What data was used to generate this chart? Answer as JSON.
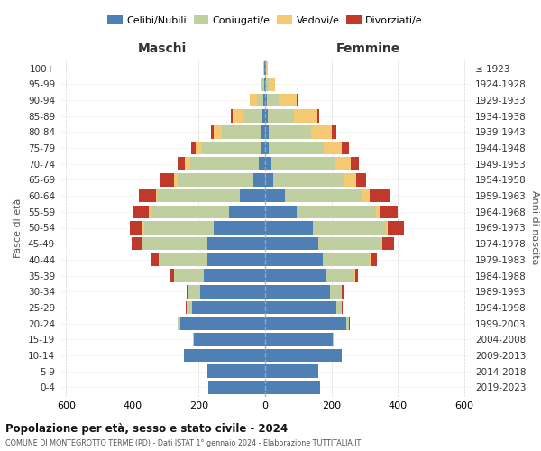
{
  "age_groups": [
    "100+",
    "95-99",
    "90-94",
    "85-89",
    "80-84",
    "75-79",
    "70-74",
    "65-69",
    "60-64",
    "55-59",
    "50-54",
    "45-49",
    "40-44",
    "35-39",
    "30-34",
    "25-29",
    "20-24",
    "15-19",
    "10-14",
    "5-9",
    "0-4"
  ],
  "birth_years": [
    "≤ 1923",
    "1924-1928",
    "1929-1933",
    "1934-1938",
    "1939-1943",
    "1944-1948",
    "1949-1953",
    "1954-1958",
    "1959-1963",
    "1964-1968",
    "1969-1973",
    "1974-1978",
    "1979-1983",
    "1984-1988",
    "1989-1993",
    "1994-1998",
    "1999-2003",
    "2004-2008",
    "2009-2013",
    "2014-2018",
    "2019-2023"
  ],
  "male_celibe": [
    2,
    3,
    5,
    8,
    10,
    14,
    20,
    35,
    75,
    110,
    155,
    175,
    175,
    185,
    195,
    220,
    255,
    215,
    245,
    175,
    170
  ],
  "male_coniugato": [
    2,
    5,
    20,
    60,
    120,
    175,
    205,
    230,
    250,
    235,
    210,
    195,
    145,
    90,
    35,
    15,
    8,
    2,
    0,
    0,
    0
  ],
  "male_vedovo": [
    2,
    5,
    20,
    30,
    25,
    20,
    18,
    10,
    5,
    5,
    4,
    2,
    2,
    1,
    1,
    1,
    1,
    0,
    0,
    0,
    0
  ],
  "male_divorziato": [
    0,
    0,
    2,
    4,
    8,
    15,
    20,
    40,
    50,
    50,
    40,
    30,
    20,
    10,
    5,
    2,
    1,
    0,
    0,
    0,
    0
  ],
  "female_celibe": [
    2,
    3,
    5,
    8,
    10,
    12,
    18,
    25,
    60,
    95,
    145,
    160,
    175,
    185,
    195,
    215,
    245,
    205,
    230,
    160,
    165
  ],
  "female_coniugato": [
    2,
    8,
    35,
    80,
    130,
    165,
    195,
    215,
    235,
    240,
    220,
    190,
    140,
    85,
    35,
    15,
    8,
    2,
    0,
    0,
    0
  ],
  "female_vedovo": [
    5,
    20,
    55,
    70,
    60,
    55,
    45,
    35,
    20,
    10,
    5,
    4,
    2,
    1,
    1,
    1,
    1,
    0,
    0,
    0,
    0
  ],
  "female_divorziato": [
    0,
    0,
    2,
    5,
    15,
    20,
    25,
    30,
    60,
    55,
    50,
    35,
    20,
    10,
    5,
    2,
    1,
    0,
    0,
    0,
    0
  ],
  "colors": {
    "celibe": "#4e7fb5",
    "coniugato": "#bfcfa0",
    "vedovo": "#f5c872",
    "divorziato": "#c0392b"
  },
  "title1": "Popolazione per età, sesso e stato civile - 2024",
  "title2": "COMUNE DI MONTEGROTTO TERME (PD) - Dati ISTAT 1° gennaio 2024 - Elaborazione TUTTITALIA.IT",
  "xlabel_left": "Maschi",
  "xlabel_right": "Femmine",
  "ylabel_left": "Fasce di età",
  "ylabel_right": "Anni di nascita",
  "xlim": 620,
  "bg_color": "#ffffff",
  "grid_color": "#cccccc"
}
